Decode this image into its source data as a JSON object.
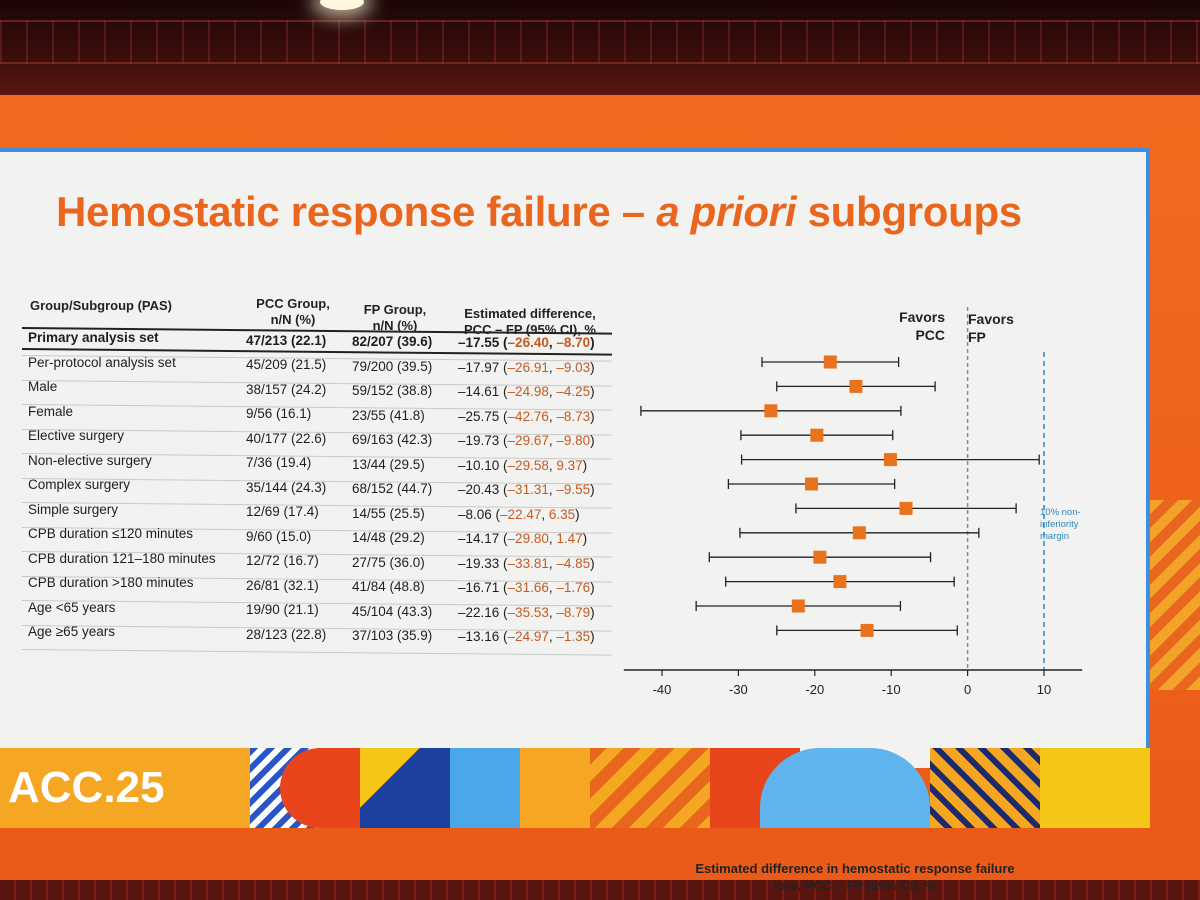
{
  "slide": {
    "title_main": "Hemostatic response failure – ",
    "title_italic": "a priori",
    "title_end": " subgroups"
  },
  "table": {
    "headers": {
      "group": "Group/Subgroup (PAS)",
      "pcc_line1": "PCC Group,",
      "pcc_line2": "n/N (%)",
      "fp_line1": "FP Group,",
      "fp_line2": "n/N (%)",
      "est_line1": "Estimated difference,",
      "est_line2": "PCC – FP (95% CI), %"
    },
    "rows": [
      {
        "label": "Primary analysis set",
        "pcc": "47/213 (22.1)",
        "fp": "82/207 (39.6)",
        "est": "–17.55",
        "lo": "–26.40",
        "hi": "–8.70",
        "bold": true
      },
      {
        "label": "Per-protocol analysis set",
        "pcc": "45/209 (21.5)",
        "fp": "79/200 (39.5)",
        "est": "–17.97",
        "lo": "–26.91",
        "hi": "–9.03"
      },
      {
        "label": "Male",
        "pcc": "38/157 (24.2)",
        "fp": "59/152 (38.8)",
        "est": "–14.61",
        "lo": "–24.98",
        "hi": "–4.25"
      },
      {
        "label": "Female",
        "pcc": "9/56 (16.1)",
        "fp": "23/55 (41.8)",
        "est": "–25.75",
        "lo": "–42.76",
        "hi": "–8.73"
      },
      {
        "label": "Elective surgery",
        "pcc": "40/177 (22.6)",
        "fp": "69/163 (42.3)",
        "est": "–19.73",
        "lo": "–29.67",
        "hi": "–9.80"
      },
      {
        "label": "Non-elective surgery",
        "pcc": "7/36 (19.4)",
        "fp": "13/44 (29.5)",
        "est": "–10.10",
        "lo": "–29.58",
        "hi": "9.37"
      },
      {
        "label": "Complex surgery",
        "pcc": "35/144 (24.3)",
        "fp": "68/152 (44.7)",
        "est": "–20.43",
        "lo": "–31.31",
        "hi": "–9.55"
      },
      {
        "label": "Simple surgery",
        "pcc": "12/69 (17.4)",
        "fp": "14/55 (25.5)",
        "est": "–8.06",
        "lo": "–22.47",
        "hi": "6.35"
      },
      {
        "label": "CPB duration ≤120 minutes",
        "pcc": "9/60 (15.0)",
        "fp": "14/48 (29.2)",
        "est": "–14.17",
        "lo": "–29.80",
        "hi": "1.47"
      },
      {
        "label": "CPB duration 121–180 minutes",
        "pcc": "12/72 (16.7)",
        "fp": "27/75 (36.0)",
        "est": "–19.33",
        "lo": "–33.81",
        "hi": "–4.85"
      },
      {
        "label": "CPB duration >180 minutes",
        "pcc": "26/81 (32.1)",
        "fp": "41/84 (48.8)",
        "est": "–16.71",
        "lo": "–31.66",
        "hi": "–1.76"
      },
      {
        "label": "Age <65 years",
        "pcc": "19/90 (21.1)",
        "fp": "45/104 (43.3)",
        "est": "–22.16",
        "lo": "–35.53",
        "hi": "–8.79"
      },
      {
        "label": "Age ≥65 years",
        "pcc": "28/123 (22.8)",
        "fp": "37/103 (35.9)",
        "est": "–13.16",
        "lo": "–24.97",
        "hi": "–1.35"
      }
    ]
  },
  "chart_data": {
    "type": "forest",
    "xlim": [
      -45,
      15
    ],
    "xticks": [
      -40,
      -30,
      -20,
      -10,
      0,
      10
    ],
    "xtick_labels": [
      "-40",
      "-30",
      "-20",
      "-10",
      "0",
      "10"
    ],
    "xlabel": "Estimated difference in hemostatic response failure rate, PCC – FP (95% CI), %",
    "favors_left": "Favors PCC",
    "favors_right": "Favors FP",
    "noninferiority_margin": 10,
    "noninferiority_label": "10% non-inferiority margin",
    "reference_line": 0,
    "marker_color": "#e8731c",
    "margin_color": "#2e86c1",
    "points": [
      {
        "name": "Primary analysis set",
        "est": -17.55,
        "lo": -26.4,
        "hi": -8.7
      },
      {
        "name": "Per-protocol analysis set",
        "est": -17.97,
        "lo": -26.91,
        "hi": -9.03
      },
      {
        "name": "Male",
        "est": -14.61,
        "lo": -24.98,
        "hi": -4.25
      },
      {
        "name": "Female",
        "est": -25.75,
        "lo": -42.76,
        "hi": -8.73
      },
      {
        "name": "Elective surgery",
        "est": -19.73,
        "lo": -29.67,
        "hi": -9.8
      },
      {
        "name": "Non-elective surgery",
        "est": -10.1,
        "lo": -29.58,
        "hi": 9.37
      },
      {
        "name": "Complex surgery",
        "est": -20.43,
        "lo": -31.31,
        "hi": -9.55
      },
      {
        "name": "Simple surgery",
        "est": -8.06,
        "lo": -22.47,
        "hi": 6.35
      },
      {
        "name": "CPB duration ≤120 minutes",
        "est": -14.17,
        "lo": -29.8,
        "hi": 1.47
      },
      {
        "name": "CPB duration 121–180 minutes",
        "est": -19.33,
        "lo": -33.81,
        "hi": -4.85
      },
      {
        "name": "CPB duration >180 minutes",
        "est": -16.71,
        "lo": -31.66,
        "hi": -1.76
      },
      {
        "name": "Age <65 years",
        "est": -22.16,
        "lo": -35.53,
        "hi": -8.79
      },
      {
        "name": "Age ≥65 years",
        "est": -13.16,
        "lo": -24.97,
        "hi": -1.35
      }
    ]
  },
  "footer": {
    "logo_text": "ACC.25"
  },
  "colors": {
    "title": "#e8661e",
    "frame": "#f26a1f",
    "slide_border": "#3f8fe0"
  }
}
